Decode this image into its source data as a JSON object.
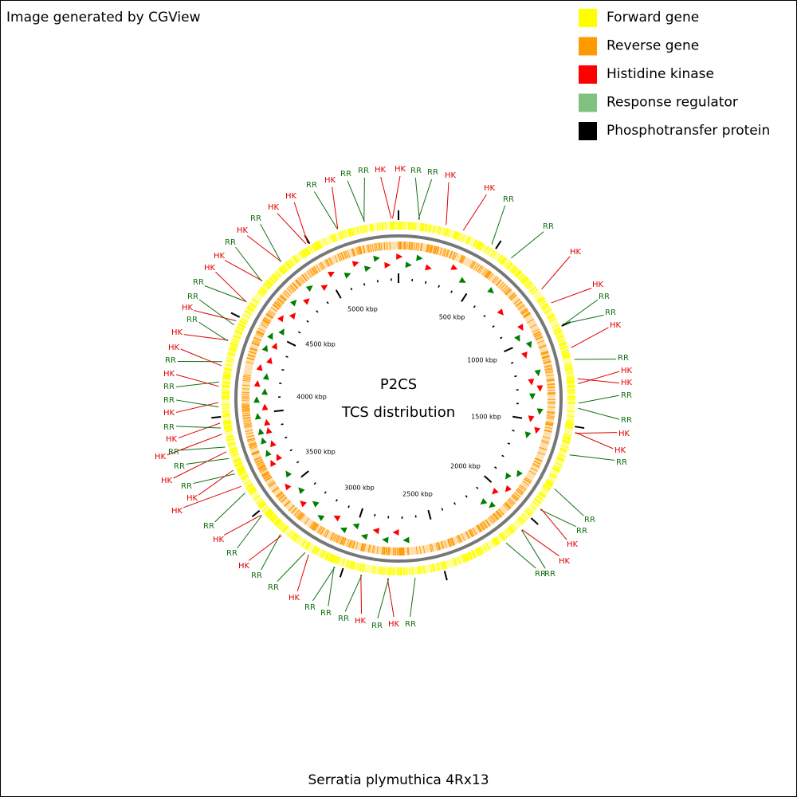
{
  "header": {
    "credit": "Image generated by CGView"
  },
  "legend": [
    {
      "label": "Forward gene",
      "color": "#ffff00"
    },
    {
      "label": "Reverse gene",
      "color": "#ff9900"
    },
    {
      "label": "Histidine kinase",
      "color": "#ff0000"
    },
    {
      "label": "Response regulator",
      "color": "#80c080"
    },
    {
      "label": "Phosphotransfer protein",
      "color": "#000000"
    }
  ],
  "map": {
    "title": "P2CS",
    "subtitle": "TCS distribution",
    "organism": "Serratia plymuthica 4Rx13",
    "ruler": [
      "500 kbp",
      "1000 kbp",
      "1500 kbp",
      "2000 kbp",
      "2500 kbp",
      "3000 kbp",
      "3500 kbp",
      "4000 kbp",
      "4500 kbp",
      "5000 kbp"
    ],
    "labels": [
      "HK",
      "RR",
      "RR",
      "HK",
      "HK",
      "RR",
      "RR",
      "HK",
      "HK",
      "RR",
      "RR",
      "HK",
      "HK",
      "RR",
      "RR",
      "HK",
      "RR",
      "HK",
      "HK",
      "RR",
      "RR",
      "HK",
      "HK",
      "RR",
      "RR",
      "RR",
      "HK",
      "HK",
      "RR",
      "RR",
      "RR",
      "HK",
      "RR",
      "HK",
      "RR",
      "RR",
      "RR",
      "HK",
      "RR",
      "RR",
      "HK",
      "RR",
      "HK",
      "RR",
      "HK",
      "HK",
      "RR",
      "HK",
      "RR",
      "HK",
      "RR",
      "HK",
      "RR",
      "HK",
      "RR",
      "RR",
      "HK",
      "RR",
      "HK",
      "HK",
      "RR",
      "HK",
      "RR",
      "RR",
      "HK",
      "HK",
      "RR",
      "HK",
      "RR",
      "HK",
      "HK",
      "RR"
    ]
  }
}
